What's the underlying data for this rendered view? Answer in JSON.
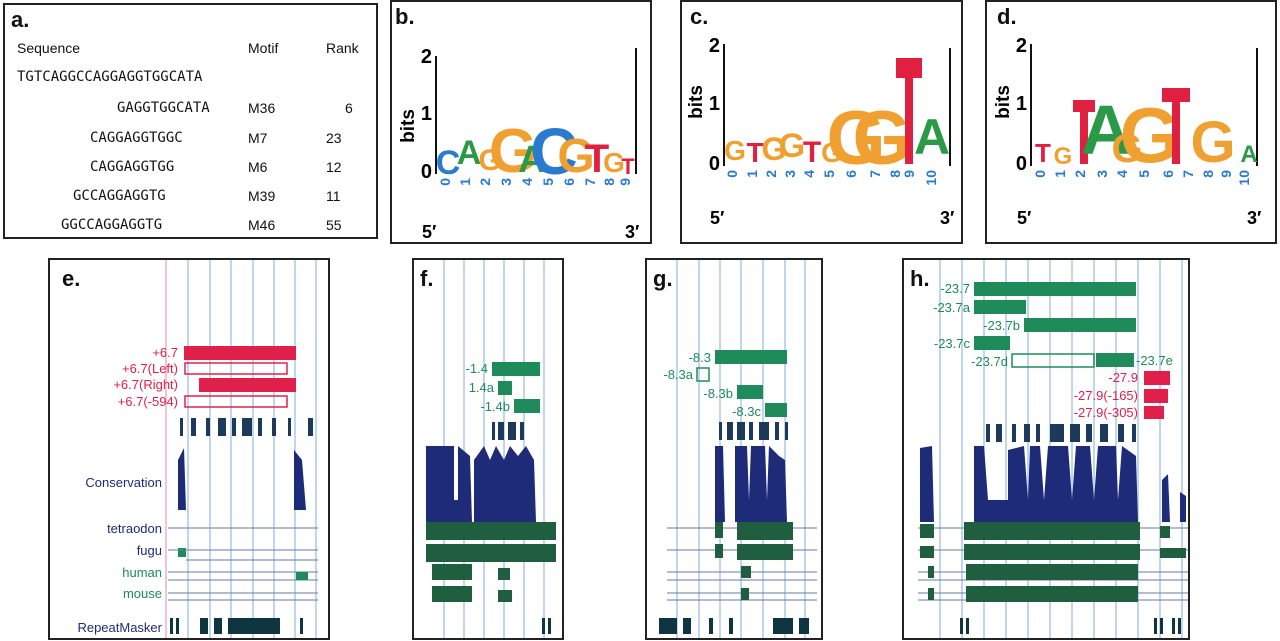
{
  "panel_a": {
    "label": "a.",
    "headers": [
      "Sequence",
      "Motif",
      "Rank"
    ],
    "full_sequence": "TGTCAGGCCAGGAGGTGGCATA",
    "rows": [
      {
        "seq": "GAGGTGGCATA",
        "motif": "M36",
        "rank": "6"
      },
      {
        "seq": "CAGGAGGTGGC",
        "motif": "M7",
        "rank": "23"
      },
      {
        "seq": "CAGGAGGTGG",
        "motif": "M6",
        "rank": "12"
      },
      {
        "seq": "GCCAGGAGGTG",
        "motif": "M39",
        "rank": "11"
      },
      {
        "seq": "GGCCAGGAGGTG",
        "motif": "M46",
        "rank": "55"
      }
    ]
  },
  "logo_common": {
    "ylabel": "bits",
    "five": "5′",
    "three": "3′",
    "yticks": [
      "0",
      "1",
      "2"
    ]
  },
  "logos": [
    {
      "label": "b.",
      "positions": [
        "0",
        "1",
        "2",
        "3",
        "4",
        "5",
        "6",
        "7",
        "8",
        "9"
      ]
    },
    {
      "label": "c.",
      "positions": [
        "0",
        "1",
        "2",
        "3",
        "4",
        "5",
        "6",
        "7",
        "8",
        "9",
        "10"
      ]
    },
    {
      "label": "d.",
      "positions": [
        "0",
        "1",
        "2",
        "3",
        "4",
        "5",
        "6",
        "7",
        "8",
        "9",
        "10"
      ]
    }
  ],
  "colors": {
    "A": "#2a9a48",
    "C": "#2a7bd0",
    "G": "#f0a030",
    "T": "#e02040",
    "navy": "#1e2b78",
    "green": "#1f8a5a",
    "red": "#e0204a",
    "grid": "#a8c8e8"
  },
  "panel_e": {
    "label": "e.",
    "features": [
      "+6.7",
      "+6.7(Left)",
      "+6.7(Right)",
      "+6.7(-594)"
    ],
    "tracks": [
      "Conservation",
      "tetraodon",
      "fugu",
      "human",
      "mouse",
      "RepeatMasker"
    ]
  },
  "panel_f": {
    "label": "f.",
    "features": [
      "-1.4",
      "1.4a",
      "-1.4b"
    ]
  },
  "panel_g": {
    "label": "g.",
    "features": [
      "-8.3",
      "-8.3a",
      "-8.3b",
      "-8.3c"
    ]
  },
  "panel_h": {
    "label": "h.",
    "features": [
      "-23.7",
      "-23.7a",
      "-23.7b",
      "-23.7c",
      "-23.7d",
      "-23.7e",
      "-27.9",
      "-27.9(-165)",
      "-27.9(-305)"
    ]
  }
}
